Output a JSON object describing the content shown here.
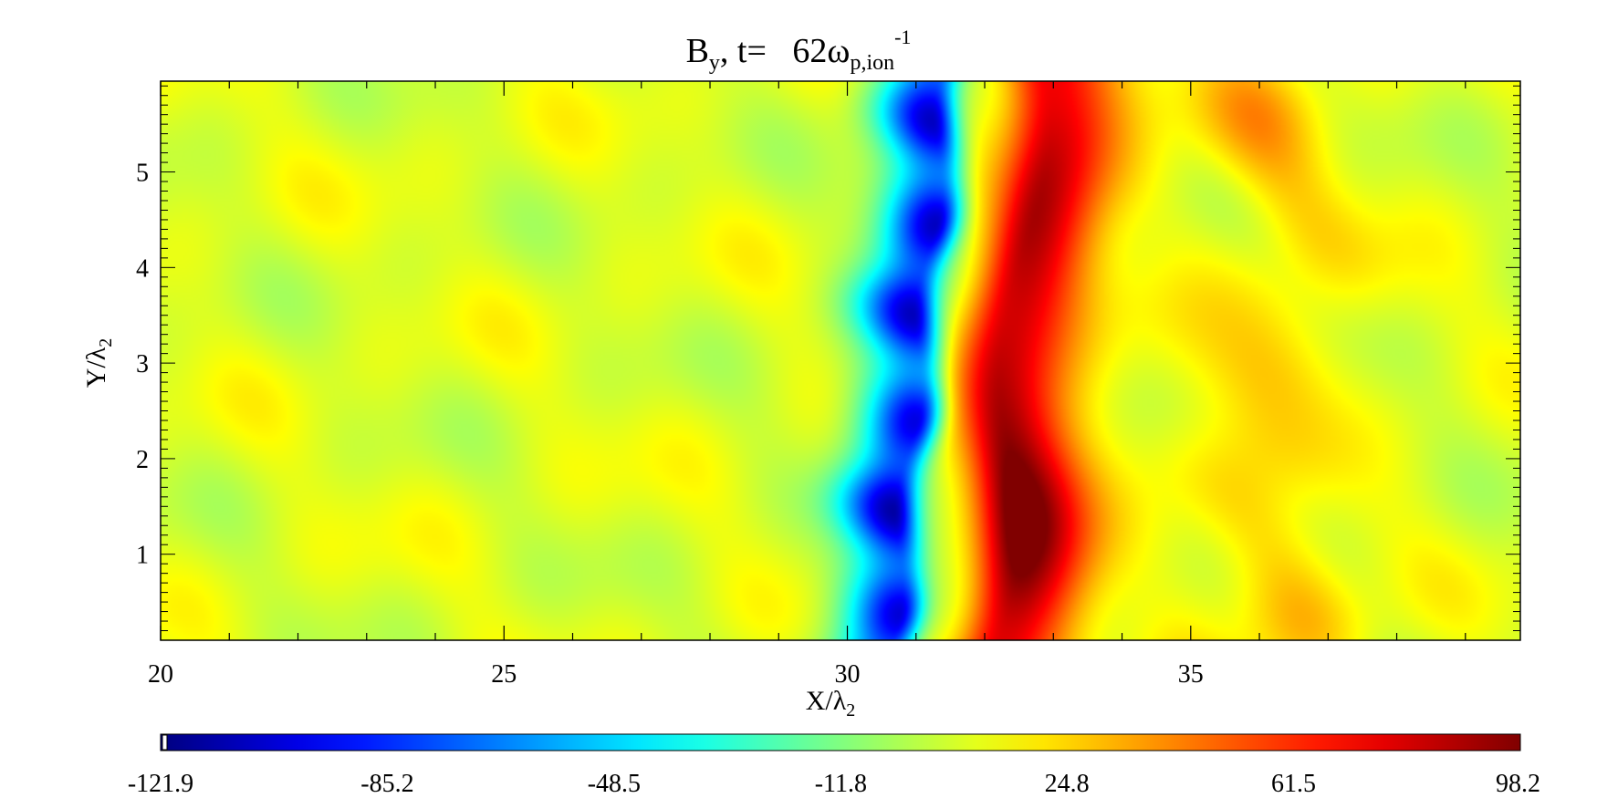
{
  "chart_data": {
    "type": "heatmap",
    "title": {
      "symbol": "B",
      "symbol_sub": "y",
      "prefix": ", t=   62",
      "omega": "ω",
      "omega_sub": "p,ion",
      "omega_sup": "-1"
    },
    "xlabel": {
      "main": "X/λ",
      "sub": "2"
    },
    "ylabel": {
      "main": "Y/λ",
      "sub": "2"
    },
    "xlim": [
      20,
      39.8
    ],
    "ylim": [
      0.1,
      5.95
    ],
    "x_ticks": [
      20,
      25,
      30,
      35
    ],
    "y_ticks": [
      1,
      2,
      3,
      4,
      5
    ],
    "colorscale": "jet",
    "colorbar": {
      "min": -121.9,
      "max": 98.2,
      "tick_values": [
        -121.9,
        -85.2,
        -48.5,
        -11.8,
        24.8,
        61.5,
        98.2
      ],
      "tick_labels": [
        "-121.9",
        "-85.2",
        "-48.5",
        "-11.8",
        "24.8",
        "61.5",
        "98.2"
      ]
    },
    "background_value": 8,
    "features": [
      {
        "kind": "negative-band",
        "x_at_ymin": 30.6,
        "x_at_ymax": 31.4,
        "peak_value": -115
      },
      {
        "kind": "positive-band",
        "x_at_ymin": 32.2,
        "x_at_ymax": 32.8,
        "peak_value": 95
      },
      {
        "kind": "weak-positive-region",
        "x_range": [
          34.8,
          37.5
        ],
        "peak_value": 45
      }
    ]
  }
}
